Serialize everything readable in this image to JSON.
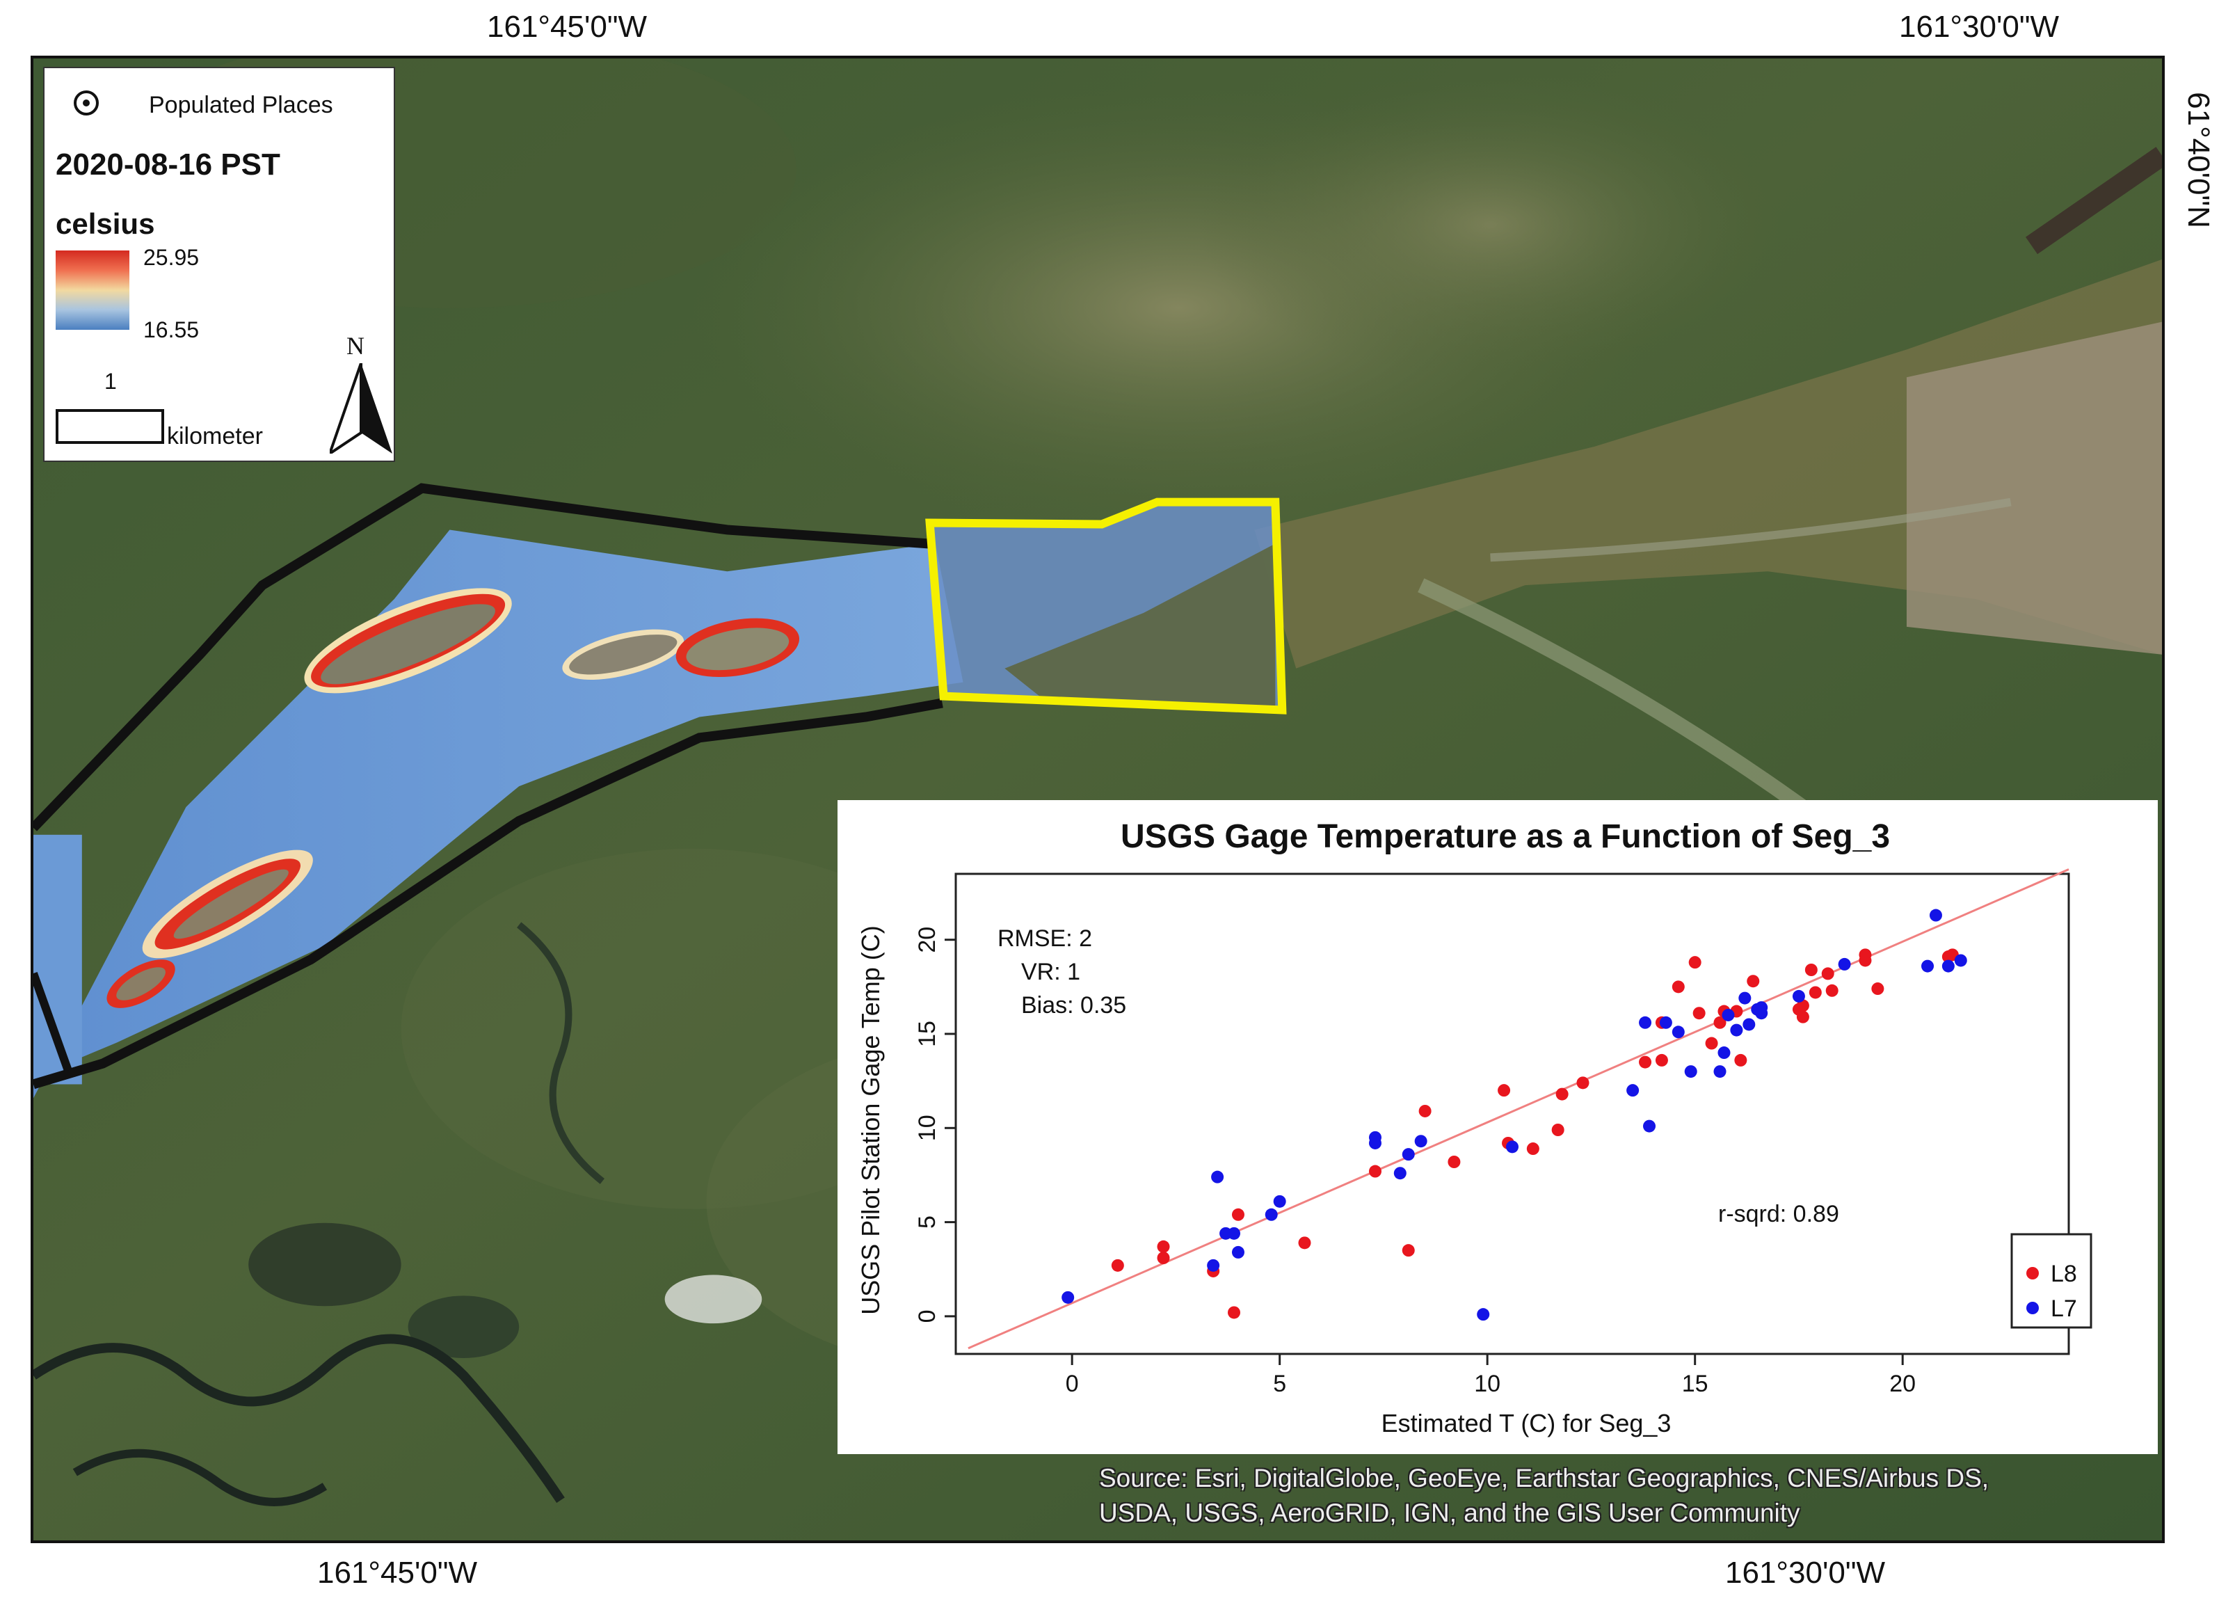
{
  "map": {
    "coords": {
      "top_left": "161°45'0\"W",
      "top_right": "161°30'0\"W",
      "bottom_left": "161°45'0\"W",
      "bottom_right": "161°30'0\"W",
      "right_side": "61°40'0\"N"
    },
    "legend": {
      "populated_places": "Populated Places",
      "date": "2020-08-16 PST",
      "unit": "celsius",
      "max_value": "25.95",
      "min_value": "16.55",
      "ramp_colors": [
        "#d42a20",
        "#f2d9a0",
        "#4a7fc0"
      ],
      "scale_value": "1",
      "scale_unit": "kilometer",
      "north_label": "N"
    },
    "attribution": {
      "line1": "Source: Esri, DigitalGlobe, GeoEye, Earthstar Geographics, CNES/Airbus DS,",
      "line2": "USDA, USGS, AeroGRID, IGN, and the GIS User Community"
    },
    "colors": {
      "river_blue": "#6b9ad6",
      "hot_red": "#e03020",
      "study_boundary": "#111111",
      "segment_box": "#f5f000"
    }
  },
  "chart_data": {
    "type": "scatter",
    "title": "USGS Gage Temperature as a Function of Seg_3",
    "xlabel": "Estimated T (C) for Seg_3",
    "ylabel": "USGS Pilot Station Gage Temp (C)",
    "xlim": [
      -2.8,
      24
    ],
    "ylim": [
      -2,
      23.5
    ],
    "x_ticks": [
      0,
      5,
      10,
      15,
      20
    ],
    "y_ticks": [
      0,
      5,
      10,
      15,
      20
    ],
    "grid": false,
    "legend_position": "bottom-right",
    "stats": [
      "RMSE: 2",
      "VR: 1",
      "Bias: 0.35"
    ],
    "r_squared": "r-sqrd: 0.89",
    "fit_line": {
      "slope": 0.96,
      "intercept": 0.7,
      "color": "#f08080"
    },
    "series": [
      {
        "name": "L8",
        "color": "#e8161e",
        "points": [
          [
            1.1,
            2.7
          ],
          [
            2.2,
            3.7
          ],
          [
            2.2,
            3.1
          ],
          [
            3.4,
            2.4
          ],
          [
            3.9,
            0.2
          ],
          [
            4.0,
            5.4
          ],
          [
            5.6,
            3.9
          ],
          [
            7.3,
            7.7
          ],
          [
            8.1,
            3.5
          ],
          [
            8.5,
            10.9
          ],
          [
            9.2,
            8.2
          ],
          [
            10.4,
            12.0
          ],
          [
            10.5,
            9.2
          ],
          [
            11.1,
            8.9
          ],
          [
            11.7,
            9.9
          ],
          [
            11.8,
            11.8
          ],
          [
            12.3,
            12.4
          ],
          [
            13.8,
            13.5
          ],
          [
            14.2,
            15.6
          ],
          [
            14.2,
            13.6
          ],
          [
            14.6,
            17.5
          ],
          [
            15.0,
            18.8
          ],
          [
            15.1,
            16.1
          ],
          [
            15.4,
            14.5
          ],
          [
            15.6,
            15.6
          ],
          [
            15.7,
            16.2
          ],
          [
            16.0,
            16.2
          ],
          [
            16.1,
            13.6
          ],
          [
            16.4,
            17.8
          ],
          [
            17.5,
            16.3
          ],
          [
            17.6,
            16.5
          ],
          [
            17.6,
            15.9
          ],
          [
            17.8,
            18.4
          ],
          [
            17.9,
            17.2
          ],
          [
            18.2,
            18.2
          ],
          [
            18.3,
            17.3
          ],
          [
            19.1,
            19.2
          ],
          [
            19.1,
            18.9
          ],
          [
            19.4,
            17.4
          ],
          [
            21.1,
            19.1
          ],
          [
            21.2,
            19.2
          ]
        ]
      },
      {
        "name": "L7",
        "color": "#1414e6",
        "points": [
          [
            -0.1,
            1.0
          ],
          [
            3.4,
            2.7
          ],
          [
            3.5,
            7.4
          ],
          [
            3.7,
            4.4
          ],
          [
            3.9,
            4.4
          ],
          [
            4.0,
            3.4
          ],
          [
            4.8,
            5.4
          ],
          [
            5.0,
            6.1
          ],
          [
            7.3,
            9.2
          ],
          [
            7.3,
            9.5
          ],
          [
            7.9,
            7.6
          ],
          [
            8.1,
            8.6
          ],
          [
            8.4,
            9.3
          ],
          [
            9.9,
            0.1
          ],
          [
            10.6,
            9.0
          ],
          [
            13.5,
            12.0
          ],
          [
            13.8,
            15.6
          ],
          [
            13.9,
            10.1
          ],
          [
            14.3,
            15.6
          ],
          [
            14.6,
            15.1
          ],
          [
            14.9,
            13.0
          ],
          [
            15.6,
            13.0
          ],
          [
            15.7,
            14.0
          ],
          [
            15.8,
            16.0
          ],
          [
            16.0,
            15.2
          ],
          [
            16.2,
            16.9
          ],
          [
            16.3,
            15.5
          ],
          [
            16.5,
            16.3
          ],
          [
            16.6,
            16.4
          ],
          [
            16.6,
            16.1
          ],
          [
            17.5,
            17.0
          ],
          [
            18.6,
            18.7
          ],
          [
            20.6,
            18.6
          ],
          [
            20.8,
            21.3
          ],
          [
            21.1,
            18.6
          ],
          [
            21.4,
            18.9
          ]
        ]
      }
    ]
  }
}
